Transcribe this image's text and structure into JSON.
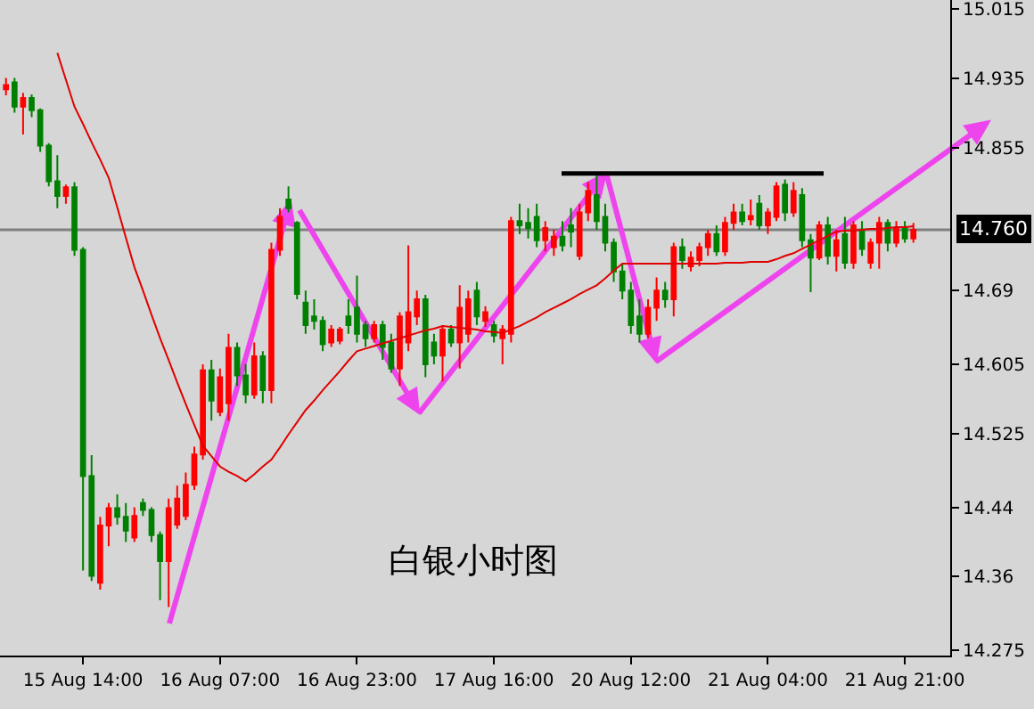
{
  "chart_data": {
    "type": "candlestick",
    "annotations": [
      "白银小时图"
    ],
    "categories": [
      null,
      null,
      null,
      null,
      null,
      null,
      null,
      null,
      null,
      "15 Aug 14:00",
      null,
      null,
      null,
      null,
      null,
      null,
      null,
      null,
      null,
      null,
      null,
      null,
      null,
      null,
      null,
      "16 Aug 07:00",
      null,
      null,
      null,
      null,
      null,
      null,
      null,
      null,
      null,
      null,
      null,
      null,
      null,
      null,
      null,
      "16 Aug 23:00",
      null,
      null,
      null,
      null,
      null,
      null,
      null,
      null,
      null,
      null,
      null,
      null,
      null,
      null,
      null,
      "17 Aug 16:00",
      null,
      null,
      null,
      null,
      null,
      null,
      null,
      null,
      null,
      null,
      null,
      null,
      null,
      null,
      null,
      "20 Aug 12:00",
      null,
      null,
      null,
      null,
      null,
      null,
      null,
      null,
      null,
      null,
      null,
      null,
      null,
      null,
      null,
      "21 Aug 04:00",
      null,
      null,
      null,
      null,
      null,
      null,
      null,
      null,
      null,
      null,
      null,
      null,
      null,
      null,
      null,
      "21 Aug 21:00",
      null
    ],
    "ohlc": [
      [
        14.922,
        14.935,
        14.915,
        14.927
      ],
      [
        14.93,
        14.935,
        14.895,
        14.902
      ],
      [
        14.902,
        14.918,
        14.87,
        14.912
      ],
      [
        14.912,
        14.916,
        14.89,
        14.898
      ],
      [
        14.898,
        14.9,
        14.85,
        14.857
      ],
      [
        14.857,
        14.86,
        14.81,
        14.816
      ],
      [
        14.816,
        14.846,
        14.785,
        14.799
      ],
      [
        14.799,
        14.812,
        14.79,
        14.809
      ],
      [
        14.809,
        14.815,
        14.73,
        14.737
      ],
      [
        14.737,
        14.74,
        14.367,
        14.476
      ],
      [
        14.476,
        14.5,
        14.355,
        14.361
      ],
      [
        14.353,
        14.429,
        14.345,
        14.419
      ],
      [
        14.419,
        14.445,
        14.395,
        14.439
      ],
      [
        14.439,
        14.455,
        14.42,
        14.429
      ],
      [
        14.429,
        14.445,
        14.4,
        14.413
      ],
      [
        14.405,
        14.44,
        14.4,
        14.43
      ],
      [
        14.445,
        14.45,
        14.43,
        14.437
      ],
      [
        14.437,
        14.44,
        14.4,
        14.408
      ],
      [
        14.408,
        14.412,
        14.333,
        14.378
      ],
      [
        14.378,
        14.45,
        14.325,
        14.439
      ],
      [
        14.42,
        14.465,
        14.415,
        14.45
      ],
      [
        14.43,
        14.48,
        14.425,
        14.466
      ],
      [
        14.466,
        14.51,
        14.46,
        14.501
      ],
      [
        14.501,
        14.605,
        14.495,
        14.598
      ],
      [
        14.598,
        14.61,
        14.54,
        14.563
      ],
      [
        14.55,
        14.6,
        14.545,
        14.59
      ],
      [
        14.56,
        14.64,
        14.54,
        14.624
      ],
      [
        14.624,
        14.63,
        14.58,
        14.592
      ],
      [
        14.592,
        14.605,
        14.56,
        14.57
      ],
      [
        14.57,
        14.63,
        14.565,
        14.614
      ],
      [
        14.614,
        14.62,
        14.56,
        14.575
      ],
      [
        14.575,
        14.745,
        14.56,
        14.737
      ],
      [
        14.737,
        14.785,
        14.73,
        14.775
      ],
      [
        14.795,
        14.81,
        14.78,
        14.785
      ],
      [
        14.768,
        14.77,
        14.68,
        14.686
      ],
      [
        14.676,
        14.69,
        14.64,
        14.65
      ],
      [
        14.66,
        14.68,
        14.645,
        14.655
      ],
      [
        14.655,
        14.66,
        14.62,
        14.628
      ],
      [
        14.63,
        14.65,
        14.625,
        14.645
      ],
      [
        14.632,
        14.648,
        14.628,
        14.645
      ],
      [
        14.66,
        14.68,
        14.64,
        14.65
      ],
      [
        14.67,
        14.707,
        14.63,
        14.64
      ],
      [
        14.65,
        14.655,
        14.625,
        14.635
      ],
      [
        14.635,
        14.655,
        14.63,
        14.65
      ],
      [
        14.65,
        14.655,
        14.61,
        14.625
      ],
      [
        14.63,
        14.64,
        14.595,
        14.6
      ],
      [
        14.6,
        14.665,
        14.58,
        14.66
      ],
      [
        14.63,
        14.742,
        14.62,
        14.665
      ],
      [
        14.66,
        14.69,
        14.65,
        14.68
      ],
      [
        14.68,
        14.685,
        14.59,
        14.605
      ],
      [
        14.63,
        14.64,
        14.605,
        14.615
      ],
      [
        14.615,
        14.65,
        14.585,
        14.645
      ],
      [
        14.645,
        14.65,
        14.625,
        14.63
      ],
      [
        14.63,
        14.696,
        14.6,
        14.67
      ],
      [
        14.64,
        14.69,
        14.63,
        14.68
      ],
      [
        14.69,
        14.7,
        14.65,
        14.66
      ],
      [
        14.655,
        14.672,
        14.648,
        14.665
      ],
      [
        14.65,
        14.655,
        14.63,
        14.638
      ],
      [
        14.635,
        14.65,
        14.605,
        14.645
      ],
      [
        14.64,
        14.775,
        14.63,
        14.77
      ],
      [
        14.77,
        14.79,
        14.755,
        14.765
      ],
      [
        14.768,
        14.785,
        14.75,
        14.762
      ],
      [
        14.775,
        14.79,
        14.74,
        14.748
      ],
      [
        14.748,
        14.77,
        14.735,
        14.762
      ],
      [
        14.74,
        14.76,
        14.73,
        14.752
      ],
      [
        14.752,
        14.77,
        14.735,
        14.742
      ],
      [
        14.765,
        14.785,
        14.74,
        14.758
      ],
      [
        14.73,
        14.79,
        14.725,
        14.78
      ],
      [
        14.78,
        14.815,
        14.77,
        14.805
      ],
      [
        14.8,
        14.826,
        14.76,
        14.77
      ],
      [
        14.775,
        14.79,
        14.735,
        14.745
      ],
      [
        14.745,
        14.75,
        14.7,
        14.712
      ],
      [
        14.712,
        14.72,
        14.68,
        14.69
      ],
      [
        14.69,
        14.7,
        14.64,
        14.65
      ],
      [
        14.66,
        14.68,
        14.63,
        14.64
      ],
      [
        14.64,
        14.68,
        14.635,
        14.67
      ],
      [
        14.67,
        14.705,
        14.655,
        14.69
      ],
      [
        14.69,
        14.7,
        14.67,
        14.68
      ],
      [
        14.68,
        14.745,
        14.66,
        14.74
      ],
      [
        14.74,
        14.75,
        14.715,
        14.725
      ],
      [
        14.718,
        14.735,
        14.712,
        14.728
      ],
      [
        14.725,
        14.745,
        14.718,
        14.74
      ],
      [
        14.74,
        14.76,
        14.73,
        14.755
      ],
      [
        14.755,
        14.765,
        14.73,
        14.735
      ],
      [
        14.735,
        14.775,
        14.73,
        14.768
      ],
      [
        14.768,
        14.79,
        14.76,
        14.78
      ],
      [
        14.78,
        14.79,
        14.765,
        14.77
      ],
      [
        14.772,
        14.795,
        14.765,
        14.776
      ],
      [
        14.79,
        14.8,
        14.76,
        14.765
      ],
      [
        14.765,
        14.785,
        14.755,
        14.78
      ],
      [
        14.775,
        14.815,
        14.77,
        14.81
      ],
      [
        14.812,
        14.818,
        14.77,
        14.78
      ],
      [
        14.78,
        14.815,
        14.775,
        14.805
      ],
      [
        14.8,
        14.808,
        14.74,
        14.748
      ],
      [
        14.748,
        14.755,
        14.688,
        14.728
      ],
      [
        14.728,
        14.77,
        14.725,
        14.765
      ],
      [
        14.765,
        14.775,
        14.72,
        14.73
      ],
      [
        14.73,
        14.76,
        14.712,
        14.748
      ],
      [
        14.755,
        14.775,
        14.715,
        14.722
      ],
      [
        14.722,
        14.77,
        14.715,
        14.765
      ],
      [
        14.76,
        14.77,
        14.73,
        14.738
      ],
      [
        14.722,
        14.75,
        14.715,
        14.745
      ],
      [
        14.745,
        14.775,
        14.715,
        14.768
      ],
      [
        14.768,
        14.772,
        14.735,
        14.745
      ],
      [
        14.745,
        14.77,
        14.74,
        14.762
      ],
      [
        14.762,
        14.77,
        14.745,
        14.75
      ],
      [
        14.75,
        14.768,
        14.745,
        14.76
      ]
    ],
    "colors": [
      "#ff0000",
      "#008000",
      "#ff0000",
      "#008000",
      "#008000",
      "#008000",
      "#008000",
      "#ff0000",
      "#008000",
      "#008000",
      "#008000",
      "#ff0000",
      "#ff0000",
      "#008000",
      "#008000",
      "#ff0000",
      "#008000",
      "#008000",
      "#008000",
      "#ff0000",
      "#ff0000",
      "#ff0000",
      "#ff0000",
      "#ff0000",
      "#008000",
      "#ff0000",
      "#ff0000",
      "#008000",
      "#008000",
      "#ff0000",
      "#008000",
      "#ff0000",
      "#ff0000",
      "#008000",
      "#008000",
      "#008000",
      "#008000",
      "#008000",
      "#ff0000",
      "#ff0000",
      "#008000",
      "#008000",
      "#008000",
      "#ff0000",
      "#008000",
      "#008000",
      "#ff0000",
      "#ff0000",
      "#ff0000",
      "#008000",
      "#008000",
      "#ff0000",
      "#008000",
      "#ff0000",
      "#ff0000",
      "#008000",
      "#ff0000",
      "#008000",
      "#ff0000",
      "#ff0000",
      "#008000",
      "#008000",
      "#008000",
      "#ff0000",
      "#ff0000",
      "#008000",
      "#008000",
      "#ff0000",
      "#ff0000",
      "#008000",
      "#008000",
      "#008000",
      "#008000",
      "#008000",
      "#008000",
      "#ff0000",
      "#ff0000",
      "#008000",
      "#ff0000",
      "#008000",
      "#ff0000",
      "#ff0000",
      "#ff0000",
      "#008000",
      "#ff0000",
      "#ff0000",
      "#008000",
      "#ff0000",
      "#008000",
      "#ff0000",
      "#ff0000",
      "#008000",
      "#ff0000",
      "#008000",
      "#008000",
      "#ff0000",
      "#008000",
      "#ff0000",
      "#008000",
      "#ff0000",
      "#008000",
      "#ff0000",
      "#ff0000",
      "#008000",
      "#ff0000",
      "#008000",
      "#ff0000"
    ],
    "series": [
      {
        "type": "line",
        "color": "#e00000",
        "values": [
          null,
          null,
          null,
          null,
          null,
          null,
          14.964,
          14.933,
          14.902,
          14.882,
          14.861,
          14.841,
          14.82,
          14.786,
          14.751,
          14.717,
          14.69,
          14.662,
          14.635,
          14.61,
          14.584,
          14.559,
          14.535,
          14.511,
          14.499,
          14.487,
          14.481,
          14.476,
          14.47,
          14.478,
          14.487,
          14.495,
          14.509,
          14.524,
          14.538,
          14.552,
          14.563,
          14.575,
          14.586,
          14.597,
          14.609,
          14.62,
          14.623,
          14.626,
          14.629,
          14.632,
          14.635,
          14.638,
          14.641,
          14.644,
          14.646,
          14.649,
          14.648,
          14.647,
          14.646,
          14.645,
          14.643,
          14.642,
          14.641,
          14.645,
          14.649,
          14.654,
          14.659,
          14.665,
          14.67,
          14.675,
          14.68,
          14.686,
          14.691,
          14.696,
          14.704,
          14.713,
          14.721,
          14.721,
          14.721,
          14.721,
          14.721,
          14.721,
          14.721,
          14.721,
          14.721,
          14.721,
          14.721,
          14.721,
          14.722,
          14.722,
          14.722,
          14.723,
          14.723,
          14.723,
          14.726,
          14.73,
          14.733,
          14.738,
          14.743,
          14.748,
          14.753,
          14.758,
          14.759,
          14.759,
          14.76,
          14.761,
          14.761,
          14.762,
          14.763,
          14.763,
          14.764
        ]
      }
    ],
    "ylim": [
      14.269,
      15.025
    ],
    "yticks": [
      14.275,
      14.36,
      14.44,
      14.525,
      14.605,
      14.69,
      14.855,
      14.935,
      15.015
    ],
    "ref_lines": [
      {
        "axis": "y",
        "value": 14.76,
        "label": "14.760",
        "color": "#808080"
      },
      {
        "axis": "y",
        "value": 14.825,
        "color": "#000000"
      }
    ],
    "grid": false
  }
}
